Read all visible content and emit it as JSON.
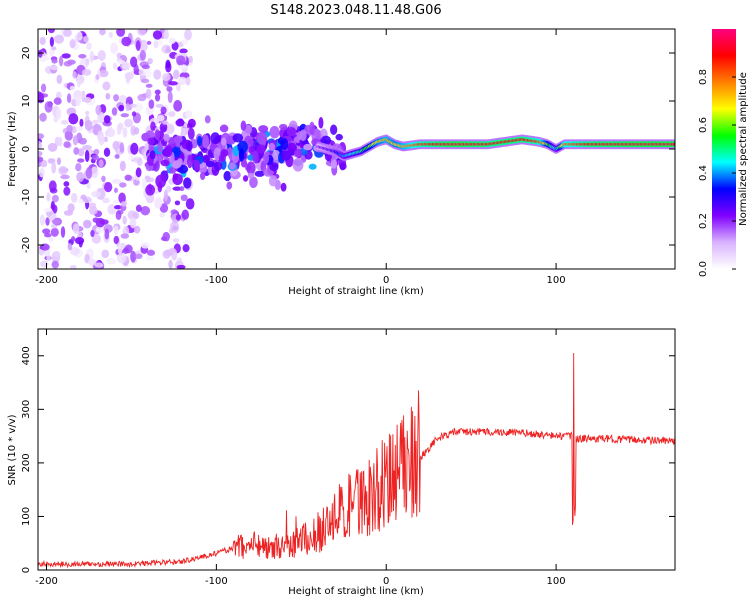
{
  "title": "S148.2023.048.11.48.G06",
  "chart_data": [
    {
      "type": "heatmap",
      "xlabel": "Height of straight line (km)",
      "ylabel": "Frequency (Hz)",
      "xlim": [
        -205,
        170
      ],
      "ylim": [
        -25,
        25
      ],
      "xticks": [
        -200,
        -100,
        0,
        100
      ],
      "yticks": [
        -20,
        -10,
        0,
        10,
        20
      ],
      "colorbar": {
        "label": "Normalized spectral amplitude",
        "range": [
          0,
          1
        ],
        "ticks": [
          0.0,
          0.2,
          0.4,
          0.6,
          0.8
        ],
        "colors": [
          "#ffffff",
          "#d9b3ff",
          "#8000ff",
          "#0000ff",
          "#00ffff",
          "#00ff00",
          "#ffff00",
          "#ff8000",
          "#ff0000",
          "#ff0080"
        ]
      },
      "series": [
        {
          "name": "dominant frequency ridge",
          "x": [
            -40,
            -30,
            -25,
            -20,
            -15,
            -10,
            -5,
            0,
            5,
            10,
            20,
            40,
            60,
            80,
            90,
            95,
            100,
            105,
            120,
            150,
            170
          ],
          "y": [
            0.5,
            -0.5,
            -1.5,
            -1,
            -0.5,
            0.5,
            1.5,
            2,
            1,
            0.5,
            1,
            1,
            1,
            2,
            1.5,
            1,
            0,
            1,
            1,
            1,
            1
          ],
          "amplitude": [
            0.2,
            0.3,
            0.4,
            0.45,
            0.5,
            0.6,
            0.7,
            0.75,
            0.7,
            0.75,
            0.85,
            0.95,
            0.9,
            0.9,
            0.85,
            0.6,
            0.4,
            0.8,
            0.9,
            0.95,
            0.95
          ]
        }
      ]
    },
    {
      "type": "line",
      "xlabel": "Height of straight line (km)",
      "ylabel": "SNR (10 * v/v)",
      "xlim": [
        -205,
        170
      ],
      "ylim": [
        0,
        450
      ],
      "xticks": [
        -200,
        -100,
        0,
        100
      ],
      "yticks": [
        0,
        100,
        200,
        300,
        400
      ],
      "color": "#ee2222",
      "series": [
        {
          "name": "SNR",
          "x": [
            -205,
            -150,
            -120,
            -100,
            -80,
            -60,
            -40,
            -30,
            -20,
            -10,
            0,
            10,
            20,
            30,
            40,
            60,
            80,
            100,
            108,
            110,
            112,
            130,
            150,
            170
          ],
          "y": [
            10,
            10,
            15,
            30,
            50,
            40,
            70,
            100,
            120,
            140,
            160,
            190,
            210,
            245,
            258,
            258,
            256,
            250,
            250,
            250,
            245,
            245,
            243,
            240
          ]
        }
      ]
    }
  ]
}
